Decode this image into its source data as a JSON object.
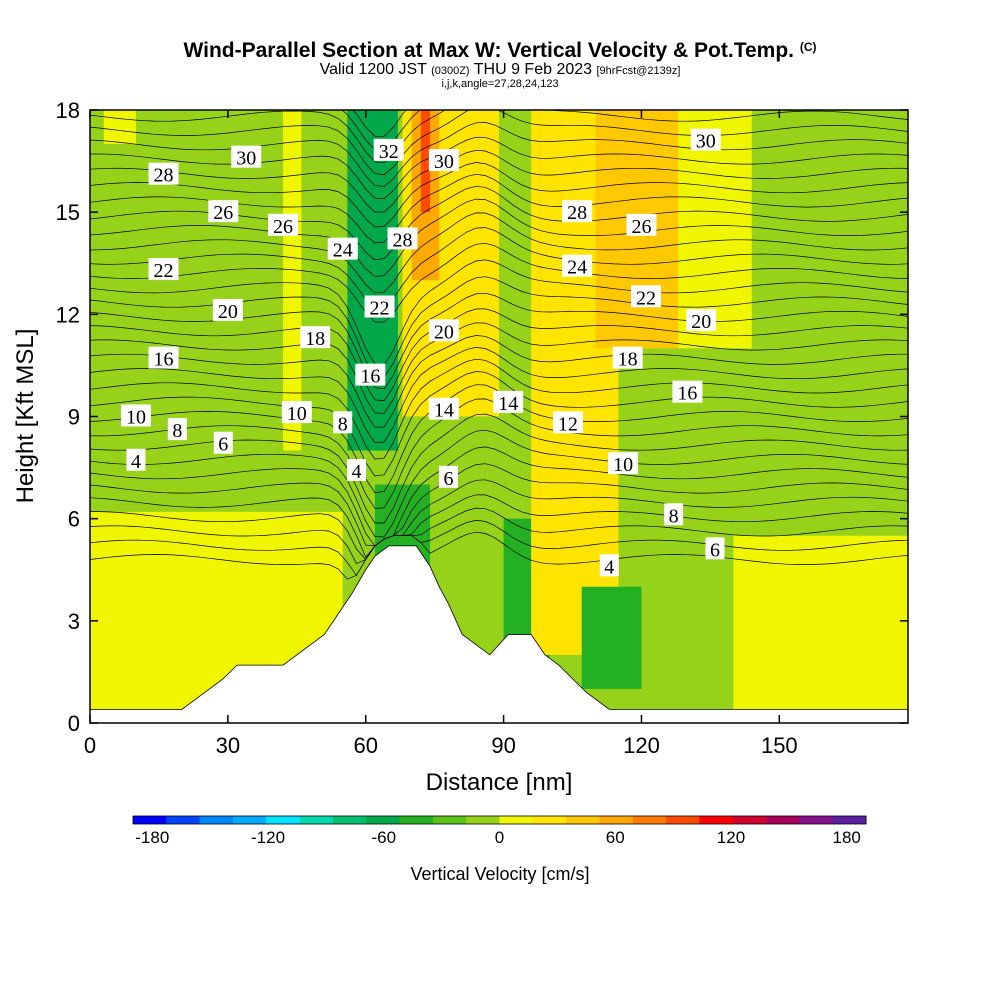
{
  "title": {
    "main": "Wind-Parallel Section at Max W: Vertical Velocity & Pot.Temp.",
    "main_suffix": "(C)",
    "valid_prefix": "Valid 1200 JST",
    "valid_utc": "(0300Z)",
    "valid_date": "THU 9 Feb 2023",
    "forecast": "[9hrFcst@2139z]",
    "indices": "i,j,k,angle=27,28,24,123"
  },
  "chart_data": {
    "type": "heatmap",
    "xlabel": "Distance [nm]",
    "ylabel": "Height [Kft MSL]",
    "xlim": [
      0,
      178
    ],
    "ylim": [
      0,
      18
    ],
    "x_ticks": [
      "0",
      "30",
      "60",
      "90",
      "120",
      "150"
    ],
    "y_ticks": [
      "0",
      "3",
      "6",
      "9",
      "12",
      "15",
      "18"
    ],
    "colorbar": {
      "label": "Vertical Velocity [cm/s]",
      "range": [
        -190,
        190
      ],
      "tick_labels": [
        "-180",
        "-120",
        "-60",
        "0",
        "60",
        "120",
        "180"
      ],
      "colors": [
        "#0000ff",
        "#0044ff",
        "#0088ff",
        "#00aaff",
        "#00e5ff",
        "#00d9b0",
        "#00c070",
        "#00a84a",
        "#23b023",
        "#5ac21a",
        "#96d21a",
        "#f0f500",
        "#ffe400",
        "#ffc800",
        "#ffa800",
        "#ff7a00",
        "#ff4a00",
        "#ff0000",
        "#d20030",
        "#a8005a",
        "#82108a",
        "#5a1fa0"
      ]
    },
    "terrain_profile": [
      [
        0,
        0.4
      ],
      [
        20,
        0.4
      ],
      [
        23,
        0.7
      ],
      [
        26,
        1.0
      ],
      [
        29,
        1.3
      ],
      [
        32,
        1.7
      ],
      [
        42,
        1.7
      ],
      [
        45,
        2.0
      ],
      [
        48,
        2.3
      ],
      [
        51,
        2.6
      ],
      [
        54,
        3.2
      ],
      [
        57,
        3.8
      ],
      [
        60,
        4.5
      ],
      [
        62,
        4.9
      ],
      [
        65,
        5.2
      ],
      [
        71,
        5.2
      ],
      [
        74,
        4.6
      ],
      [
        76,
        4.0
      ],
      [
        78,
        3.5
      ],
      [
        81,
        2.6
      ],
      [
        84,
        2.3
      ],
      [
        87,
        2.0
      ],
      [
        91,
        2.6
      ],
      [
        96,
        2.6
      ],
      [
        99,
        2.0
      ],
      [
        102,
        1.7
      ],
      [
        105,
        1.3
      ],
      [
        108,
        0.9
      ],
      [
        113,
        0.4
      ],
      [
        178,
        0.4
      ]
    ],
    "contour_labels": [
      {
        "text": "30",
        "x": 34,
        "y": 16.6
      },
      {
        "text": "28",
        "x": 16,
        "y": 16.1
      },
      {
        "text": "26",
        "x": 29,
        "y": 15.0
      },
      {
        "text": "26",
        "x": 42,
        "y": 14.6
      },
      {
        "text": "24",
        "x": 55,
        "y": 13.9
      },
      {
        "text": "22",
        "x": 16,
        "y": 13.3
      },
      {
        "text": "20",
        "x": 30,
        "y": 12.1
      },
      {
        "text": "18",
        "x": 49,
        "y": 11.3
      },
      {
        "text": "16",
        "x": 16,
        "y": 10.7
      },
      {
        "text": "10",
        "x": 10,
        "y": 9.0
      },
      {
        "text": "8",
        "x": 19,
        "y": 8.6
      },
      {
        "text": "6",
        "x": 29,
        "y": 8.2
      },
      {
        "text": "4",
        "x": 10,
        "y": 7.7
      },
      {
        "text": "10",
        "x": 45,
        "y": 9.1
      },
      {
        "text": "8",
        "x": 55,
        "y": 8.8
      },
      {
        "text": "4",
        "x": 58,
        "y": 7.4
      },
      {
        "text": "32",
        "x": 65,
        "y": 16.8
      },
      {
        "text": "30",
        "x": 77,
        "y": 16.5
      },
      {
        "text": "28",
        "x": 68,
        "y": 14.2
      },
      {
        "text": "22",
        "x": 63,
        "y": 12.2
      },
      {
        "text": "16",
        "x": 61,
        "y": 10.2
      },
      {
        "text": "20",
        "x": 77,
        "y": 11.5
      },
      {
        "text": "14",
        "x": 77,
        "y": 9.2
      },
      {
        "text": "14",
        "x": 91,
        "y": 9.4
      },
      {
        "text": "6",
        "x": 78,
        "y": 7.2
      },
      {
        "text": "12",
        "x": 104,
        "y": 8.8
      },
      {
        "text": "10",
        "x": 116,
        "y": 7.6
      },
      {
        "text": "8",
        "x": 127,
        "y": 6.1
      },
      {
        "text": "6",
        "x": 136,
        "y": 5.1
      },
      {
        "text": "4",
        "x": 113,
        "y": 4.6
      },
      {
        "text": "28",
        "x": 106,
        "y": 15.0
      },
      {
        "text": "26",
        "x": 120,
        "y": 14.6
      },
      {
        "text": "24",
        "x": 106,
        "y": 13.4
      },
      {
        "text": "22",
        "x": 121,
        "y": 12.5
      },
      {
        "text": "20",
        "x": 133,
        "y": 11.8
      },
      {
        "text": "18",
        "x": 117,
        "y": 10.7
      },
      {
        "text": "16",
        "x": 130,
        "y": 9.7
      },
      {
        "text": "30",
        "x": 134,
        "y": 17.1
      }
    ],
    "velocity_regions": [
      {
        "value": -3,
        "x": [
          0,
          178
        ],
        "y": [
          0,
          18
        ]
      },
      {
        "value": 15,
        "x": [
          0,
          55
        ],
        "y": [
          0.4,
          6.2
        ]
      },
      {
        "value": 15,
        "x": [
          42,
          46
        ],
        "y": [
          8,
          18
        ]
      },
      {
        "value": 15,
        "x": [
          3,
          10
        ],
        "y": [
          17,
          18
        ]
      },
      {
        "value": -60,
        "x": [
          56,
          67
        ],
        "y": [
          8,
          18
        ]
      },
      {
        "value": -45,
        "x": [
          62,
          74
        ],
        "y": [
          2,
          7
        ]
      },
      {
        "value": -70,
        "x": [
          94,
          96
        ],
        "y": [
          2.5,
          5
        ]
      },
      {
        "value": -40,
        "x": [
          90,
          100
        ],
        "y": [
          1.5,
          6
        ]
      },
      {
        "value": 20,
        "x": [
          68,
          89
        ],
        "y": [
          9,
          18
        ]
      },
      {
        "value": 60,
        "x": [
          70,
          76
        ],
        "y": [
          13,
          18
        ]
      },
      {
        "value": 100,
        "x": [
          72,
          74
        ],
        "y": [
          15,
          18
        ]
      },
      {
        "value": 20,
        "x": [
          96,
          115
        ],
        "y": [
          2,
          18
        ]
      },
      {
        "value": 40,
        "x": [
          110,
          128
        ],
        "y": [
          11,
          18
        ]
      },
      {
        "value": 15,
        "x": [
          140,
          178
        ],
        "y": [
          0.4,
          5.5
        ]
      },
      {
        "value": 15,
        "x": [
          128,
          144
        ],
        "y": [
          11,
          18
        ]
      },
      {
        "value": -40,
        "x": [
          107,
          120
        ],
        "y": [
          1,
          4
        ]
      }
    ]
  }
}
